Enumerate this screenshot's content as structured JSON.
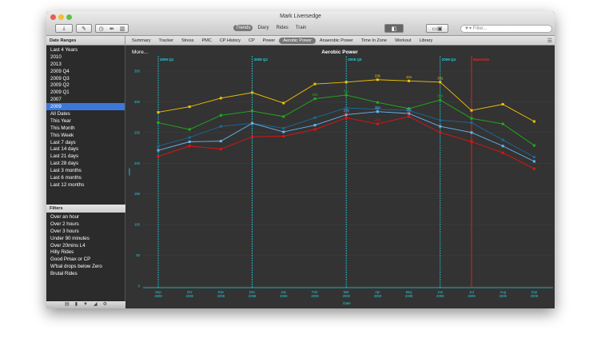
{
  "window": {
    "title": "Mark Liversedge"
  },
  "toolbar": {
    "views": [
      "Trends",
      "Diary",
      "Rides",
      "Train"
    ],
    "active_view": "Trends",
    "filter_placeholder": "Filter..."
  },
  "tabs": {
    "header": "Date Ranges",
    "items": [
      "Summary",
      "Tracker",
      "Stress",
      "PMC",
      "CP History",
      "CP",
      "Power",
      "Aerobic Power",
      "Anaerobic Power",
      "Time In Zone",
      "Workout",
      "Library"
    ],
    "active": "Aerobic Power"
  },
  "date_ranges": {
    "items": [
      "Last 4 Years",
      "2010",
      "2013",
      "2009 Q4",
      "2009 Q3",
      "2009 Q2",
      "2009 Q1",
      "2007",
      "2009",
      "All Dates",
      "This Year",
      "This Month",
      "This Week",
      "Last 7 days",
      "Last 14 days",
      "Last 21 days",
      "Last 28 days",
      "Last 3 months",
      "Last 6 months",
      "Last 12 months"
    ],
    "selected": "2009"
  },
  "filters": {
    "header": "Filters",
    "items": [
      "Over an hour",
      "Over 2 hours",
      "Over 3 hours",
      "Under 90 minutes",
      "Over 20mins L4",
      "Hilly Rides",
      "Good Pmax or CP",
      "W'bal drops below Zero",
      "Brutal Rides"
    ]
  },
  "chart_panel": {
    "more_label": "More..."
  },
  "chart_data": {
    "type": "line",
    "title": "Aerobic Power",
    "xlabel": "Date",
    "ylabel": "watts",
    "ylim": [
      0,
      350
    ],
    "yticks": [
      0,
      50,
      100,
      150,
      200,
      250,
      300,
      350
    ],
    "grid": true,
    "categories": [
      "Sep 2008",
      "Oct 2008",
      "Nov 2008",
      "Dec 2008",
      "Jan 2009",
      "Feb 2009",
      "Mar 2009",
      "Apr 2009",
      "May 2009",
      "Jun 2009",
      "Jul 2009",
      "Aug 2009",
      "Sep 2009"
    ],
    "series": [
      {
        "color": "#f2c200",
        "values": [
          283,
          292,
          306,
          315,
          298,
          329,
          332,
          336,
          334,
          332,
          286,
          296,
          268
        ],
        "labels": {
          "7": "336",
          "8": "334",
          "9": "332"
        }
      },
      {
        "color": "#1fae1f",
        "values": [
          266,
          255,
          278,
          285,
          276,
          305,
          311,
          299,
          289,
          303,
          273,
          264,
          229
        ],
        "labels": {
          "5": "305",
          "6": "311",
          "9": "303"
        }
      },
      {
        "color": "#1a6a9a",
        "values": [
          228,
          242,
          260,
          265,
          257,
          274,
          290,
          288,
          286,
          270,
          266,
          238,
          210
        ],
        "labels": {}
      },
      {
        "color": "#6ab4f0",
        "values": [
          221,
          235,
          236,
          265,
          251,
          262,
          279,
          284,
          281,
          260,
          250,
          228,
          203
        ],
        "labels": {
          "6": "279",
          "7": "284",
          "8": "281"
        }
      },
      {
        "color": "#e81010",
        "values": [
          211,
          228,
          223,
          243,
          244,
          255,
          274,
          264,
          276,
          250,
          235,
          217,
          191
        ],
        "labels": {
          "6": "274",
          "7": "264",
          "8": "276"
        }
      }
    ],
    "markers": [
      {
        "label": "2009 Q1",
        "at": "Sep 2008",
        "color": "#20d0e0",
        "style": "dashed"
      },
      {
        "label": "2009 Q2",
        "at": "Dec 2008",
        "color": "#20d0e0",
        "style": "dashed"
      },
      {
        "label": "2009 Q3",
        "at": "Mar 2009",
        "color": "#20d0e0",
        "style": "dashed"
      },
      {
        "label": "2009 Q4",
        "at": "Jun 2009",
        "color": "#20d0e0",
        "style": "dashed"
      },
      {
        "label": "Marmotte",
        "at": "Jul 2009",
        "color": "#ff2020",
        "style": "solid"
      }
    ]
  }
}
